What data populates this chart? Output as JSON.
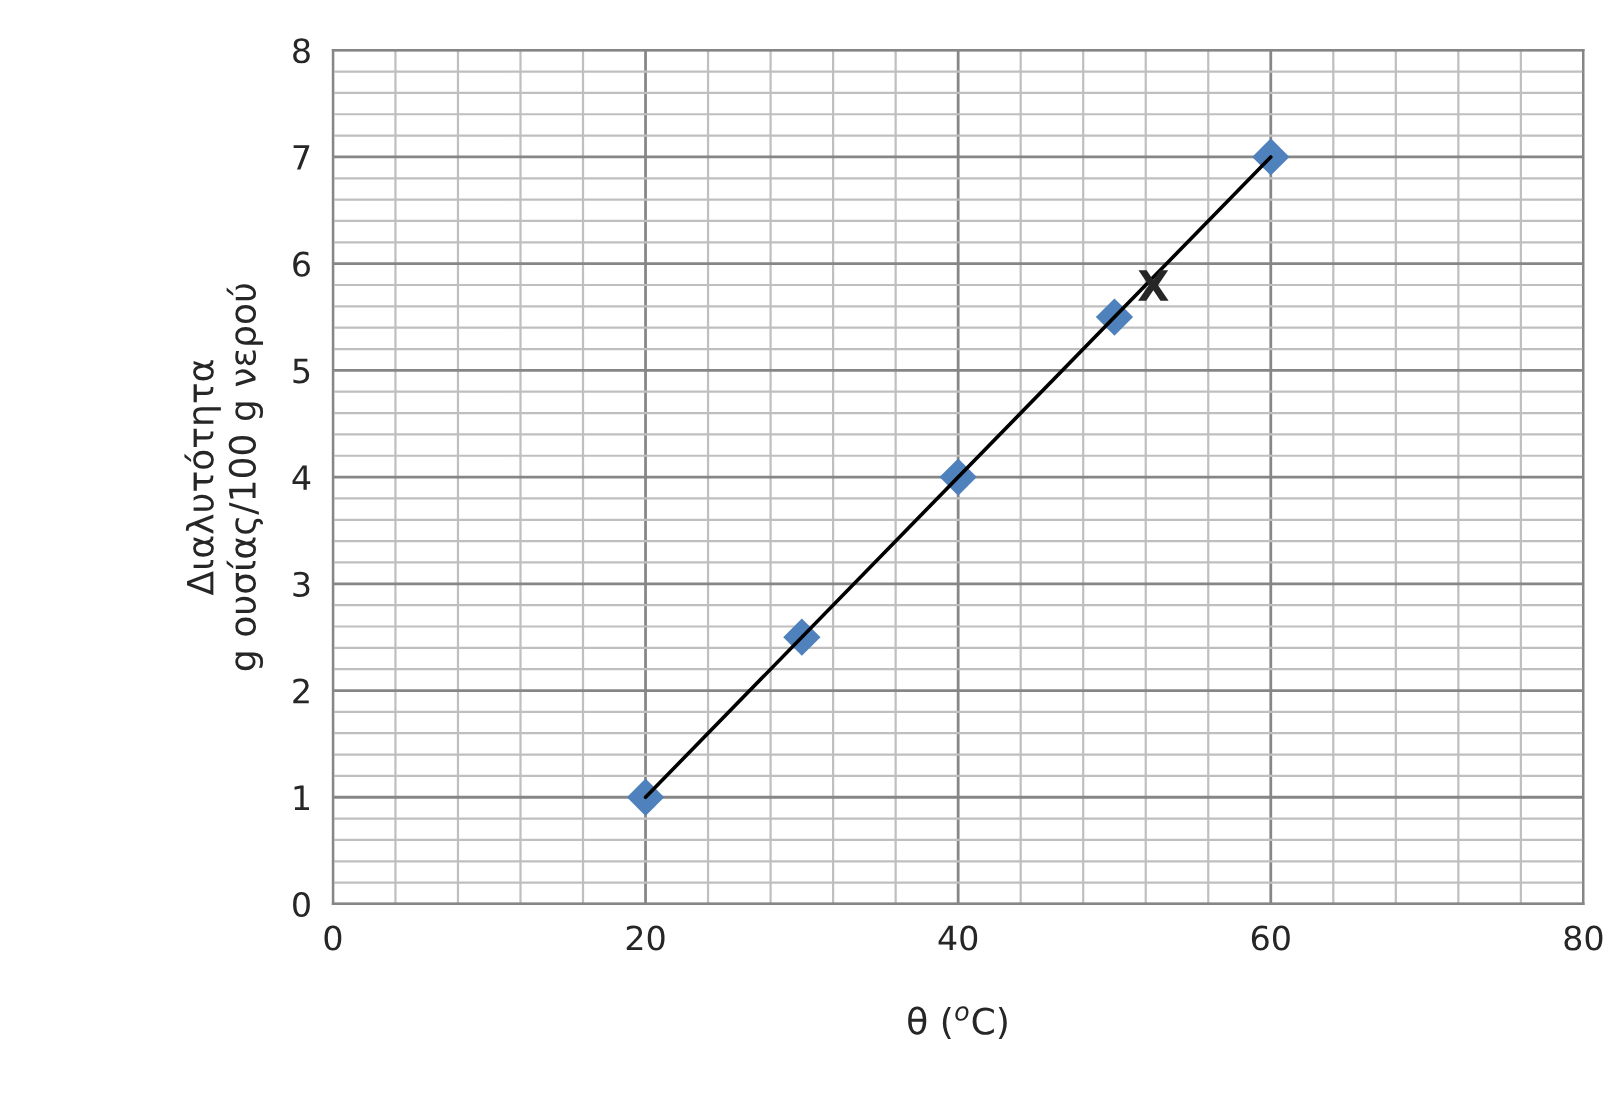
{
  "chart_data": {
    "type": "scatter",
    "xlabel": "θ ($^{o}$C)",
    "ylabel": "Διαλυτότητα\ng ουσίας/100 g νερού",
    "x": [
      20,
      30,
      40,
      50,
      60
    ],
    "series": [
      {
        "color": "#4f81bd",
        "marker": "diamond",
        "values": [
          1,
          2.5,
          4,
          5.5,
          7
        ]
      },
      {
        "type": "line",
        "color": "#000000",
        "line_style": "solid",
        "x": [
          20,
          60
        ],
        "values": [
          1,
          7
        ]
      }
    ],
    "annotations": [
      {
        "text": "X",
        "x": 50,
        "y": 5.5
      }
    ],
    "xlim": [
      0,
      80
    ],
    "xticks": [
      0,
      20,
      40,
      60,
      80
    ],
    "ylim": [
      0,
      8
    ],
    "yticks": [
      0,
      1,
      2,
      3,
      4,
      5,
      6,
      7,
      8
    ],
    "grid": true
  }
}
